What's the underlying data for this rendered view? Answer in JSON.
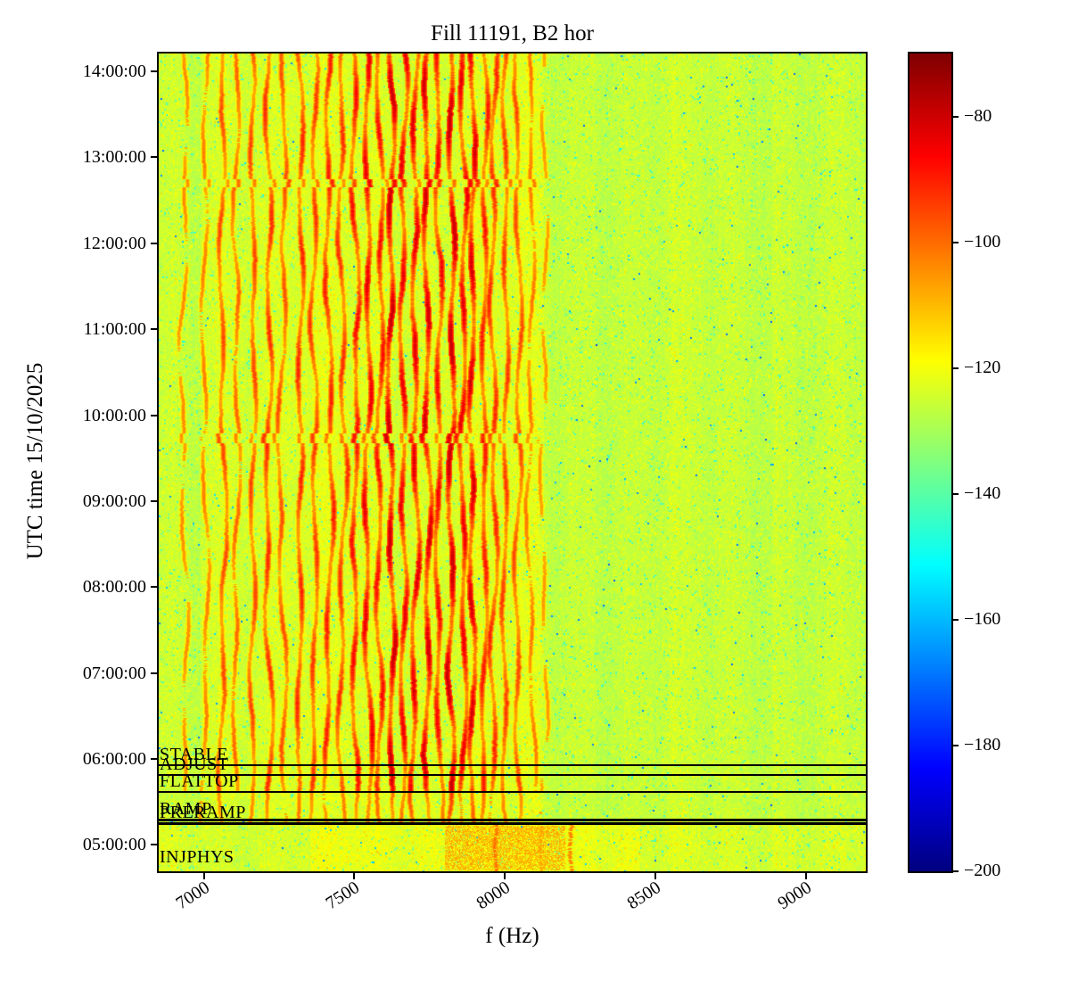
{
  "chart_data": {
    "type": "heatmap",
    "title": "Fill 11191, B2 hor",
    "xlabel": "f (Hz)",
    "ylabel": "UTC time 15/10/2025",
    "x_range_hz": [
      6850,
      9200
    ],
    "x_ticks": [
      7000,
      7500,
      8000,
      8500,
      9000
    ],
    "y_range": [
      "04:41:30",
      "14:12:30"
    ],
    "y_ticks": [
      "14:00:00",
      "13:00:00",
      "12:00:00",
      "11:00:00",
      "10:00:00",
      "09:00:00",
      "08:00:00",
      "07:00:00",
      "06:00:00",
      "05:00:00"
    ],
    "grid": false,
    "colorbar": {
      "colormap": "jet",
      "min": -200,
      "max": -70,
      "ticks": [
        -80,
        -100,
        -120,
        -140,
        -160,
        -180,
        -200
      ]
    },
    "background_level_db": -126,
    "noise_sigma_db": 3.4,
    "phases": [
      {
        "label": "STABLE",
        "time": "05:55:30",
        "line": true,
        "thick": false
      },
      {
        "label": "ADJUST",
        "time": "05:49:00",
        "line": true,
        "thick": false
      },
      {
        "label": "FLATTOP",
        "time": "05:37:00",
        "line": true,
        "thick": false
      },
      {
        "label": "RAMP",
        "time": "05:17:30",
        "line": true,
        "thick": true
      },
      {
        "label": "PRERAMP",
        "time": "05:15:00",
        "line": true,
        "thick": true
      },
      {
        "label": "INJPHYS",
        "time": "04:44:00",
        "line": false,
        "thick": false
      }
    ],
    "stripes": [
      {
        "hz": 6930,
        "strength": 0.18
      },
      {
        "hz": 7000,
        "strength": 0.22
      },
      {
        "hz": 7060,
        "strength": 0.4
      },
      {
        "hz": 7110,
        "strength": 0.3
      },
      {
        "hz": 7160,
        "strength": 0.42
      },
      {
        "hz": 7215,
        "strength": 0.5
      },
      {
        "hz": 7265,
        "strength": 0.38
      },
      {
        "hz": 7315,
        "strength": 0.52
      },
      {
        "hz": 7365,
        "strength": 0.46
      },
      {
        "hz": 7412,
        "strength": 0.55
      },
      {
        "hz": 7458,
        "strength": 0.5
      },
      {
        "hz": 7502,
        "strength": 0.62
      },
      {
        "hz": 7545,
        "strength": 0.72
      },
      {
        "hz": 7582,
        "strength": 0.62
      },
      {
        "hz": 7622,
        "strength": 0.9
      },
      {
        "hz": 7660,
        "strength": 0.72
      },
      {
        "hz": 7700,
        "strength": 0.76
      },
      {
        "hz": 7740,
        "strength": 0.82
      },
      {
        "hz": 7780,
        "strength": 0.66
      },
      {
        "hz": 7820,
        "strength": 0.95
      },
      {
        "hz": 7858,
        "strength": 0.72
      },
      {
        "hz": 7893,
        "strength": 0.8
      },
      {
        "hz": 7928,
        "strength": 0.58
      },
      {
        "hz": 7963,
        "strength": 0.52
      },
      {
        "hz": 8002,
        "strength": 0.46
      },
      {
        "hz": 8042,
        "strength": 0.4
      },
      {
        "hz": 8085,
        "strength": 0.24
      },
      {
        "hz": 8128,
        "strength": 0.14
      }
    ],
    "bottom_streaks": [
      {
        "hz": 7970,
        "level_db": -99
      },
      {
        "hz": 8120,
        "level_db": -106
      },
      {
        "hz": 8219,
        "level_db": -101
      }
    ],
    "faint_bands_hz": [
      8290,
      8560,
      8900
    ],
    "colors": {
      "axes": "#000000",
      "figure_background": "#ffffff"
    }
  }
}
